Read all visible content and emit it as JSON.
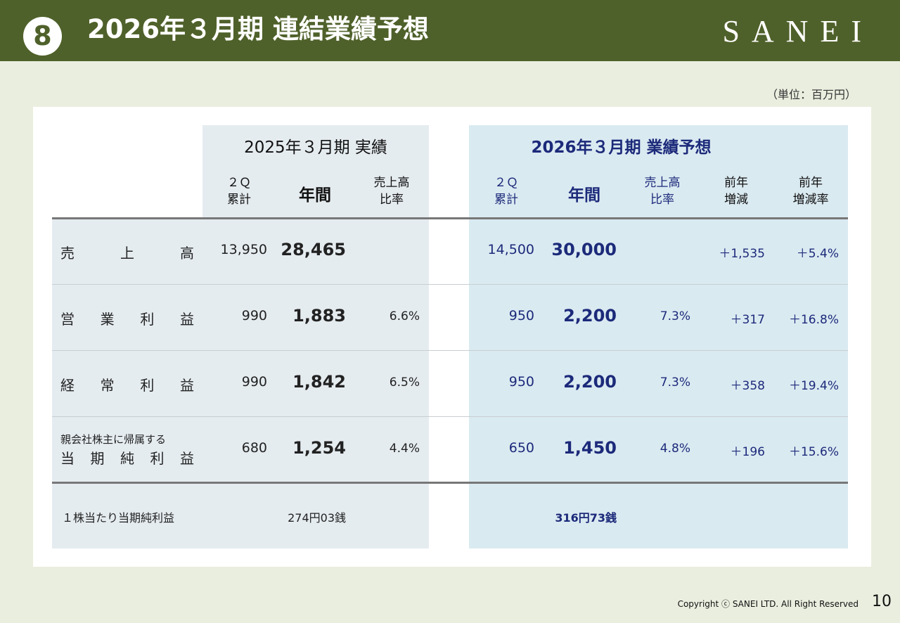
{
  "header": {
    "badge": "8",
    "title": "2026年３月期 連結業績予想",
    "logo": "SANEI"
  },
  "unit_note": "（単位：百万円）",
  "table": {
    "group_2025": "2025年３月期 実績",
    "group_2026": "2026年３月期 業績予想",
    "sub_2q": "２Ｑ\n累計",
    "sub_annual": "年間",
    "sub_ratio": "売上高\n比率",
    "sub_yoy": "前年\n増減",
    "sub_yoy_rate": "前年\n増減率",
    "rows": [
      {
        "label": "売　　上　　高",
        "p2q": "13,950",
        "pyear": "28,465",
        "pratio": "",
        "f2q": "14,500",
        "fyear": "30,000",
        "fratio": "",
        "yoy": "＋1,535",
        "yoy_rate": "＋5.4%"
      },
      {
        "label": "営　業　利　益",
        "p2q": "990",
        "pyear": "1,883",
        "pratio": "6.6%",
        "f2q": "950",
        "fyear": "2,200",
        "fratio": "7.3%",
        "yoy": "＋317",
        "yoy_rate": "＋16.8%"
      },
      {
        "label": "経　常　利　益",
        "p2q": "990",
        "pyear": "1,842",
        "pratio": "6.5%",
        "f2q": "950",
        "fyear": "2,200",
        "fratio": "7.3%",
        "yoy": "＋358",
        "yoy_rate": "＋19.4%"
      },
      {
        "label_top": "親会社株主に帰属する",
        "label": "当　期　純　利　益",
        "p2q": "680",
        "pyear": "1,254",
        "pratio": "4.4%",
        "f2q": "650",
        "fyear": "1,450",
        "fratio": "4.8%",
        "yoy": "＋196",
        "yoy_rate": "＋15.6%"
      }
    ],
    "eps_label": "１株当たり当期純利益",
    "eps_prev": "274円03銭",
    "eps_forecast": "316円73銭"
  },
  "footer": {
    "copyright": "Copyright ⓒ SANEI LTD. All Right Reserved",
    "page": "10"
  }
}
